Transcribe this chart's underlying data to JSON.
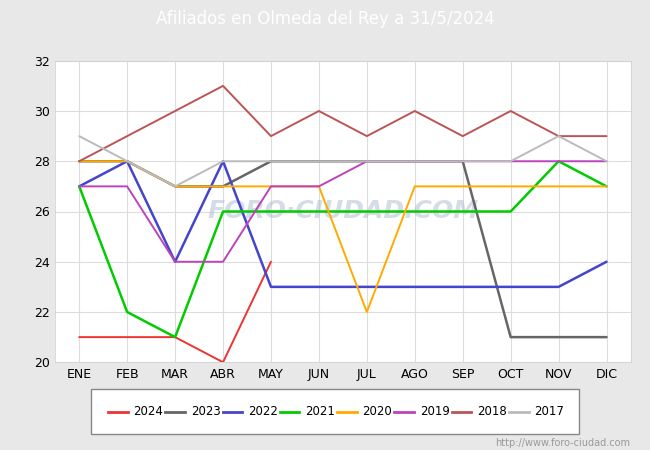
{
  "title": "Afiliados en Olmeda del Rey a 31/5/2024",
  "title_bg_color": "#4d8fd1",
  "x_labels": [
    "ENE",
    "FEB",
    "MAR",
    "ABR",
    "MAY",
    "JUN",
    "JUL",
    "AGO",
    "SEP",
    "OCT",
    "NOV",
    "DIC"
  ],
  "ylim": [
    20,
    32
  ],
  "yticks": [
    20,
    22,
    24,
    26,
    28,
    30,
    32
  ],
  "series": [
    {
      "label": "2024",
      "color": "#ee3333",
      "linewidth": 1.4,
      "data": [
        21,
        21,
        21,
        20,
        24,
        null,
        null,
        null,
        null,
        null,
        null,
        null
      ]
    },
    {
      "label": "2023",
      "color": "#666666",
      "linewidth": 1.8,
      "data": [
        28,
        28,
        27,
        27,
        28,
        28,
        28,
        28,
        28,
        21,
        21,
        21
      ]
    },
    {
      "label": "2022",
      "color": "#4444cc",
      "linewidth": 1.8,
      "data": [
        27,
        28,
        24,
        28,
        23,
        23,
        23,
        23,
        23,
        23,
        23,
        24
      ]
    },
    {
      "label": "2021",
      "color": "#00cc00",
      "linewidth": 1.8,
      "data": [
        27,
        22,
        21,
        26,
        26,
        26,
        26,
        26,
        26,
        26,
        28,
        27
      ]
    },
    {
      "label": "2020",
      "color": "#ffaa00",
      "linewidth": 1.4,
      "data": [
        28,
        28,
        27,
        27,
        27,
        27,
        22,
        27,
        27,
        27,
        27,
        27
      ]
    },
    {
      "label": "2019",
      "color": "#bb44bb",
      "linewidth": 1.4,
      "data": [
        27,
        27,
        24,
        24,
        27,
        27,
        28,
        28,
        28,
        28,
        28,
        28
      ]
    },
    {
      "label": "2018",
      "color": "#bb5555",
      "linewidth": 1.4,
      "data": [
        28,
        29,
        30,
        31,
        29,
        30,
        29,
        30,
        29,
        30,
        29,
        29
      ]
    },
    {
      "label": "2017",
      "color": "#bbbbbb",
      "linewidth": 1.4,
      "data": [
        29,
        28,
        27,
        28,
        28,
        28,
        28,
        28,
        28,
        28,
        29,
        28
      ]
    }
  ],
  "plot_bg_color": "#ffffff",
  "outer_bg_color": "#e8e8e8",
  "left_bar_color": "#4d8fd1",
  "grid_color": "#dddddd",
  "watermark_text": "FORO·CIUDAD.COM",
  "url_text": "http://www.foro-ciudad.com",
  "legend_border_color": "#888888"
}
